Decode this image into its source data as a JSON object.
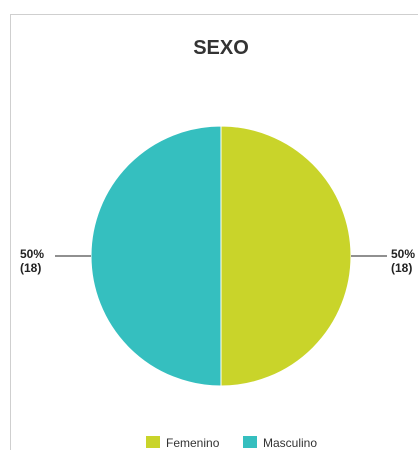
{
  "chart_data": {
    "type": "pie",
    "title": "SEXO",
    "slices": [
      {
        "name": "Femenino",
        "value": 18,
        "percent": "50%",
        "count": "(18)",
        "color": "#c9d42a"
      },
      {
        "name": "Masculino",
        "value": 18,
        "percent": "50%",
        "count": "(18)",
        "color": "#35bfbf"
      }
    ],
    "legend_position": "bottom"
  }
}
